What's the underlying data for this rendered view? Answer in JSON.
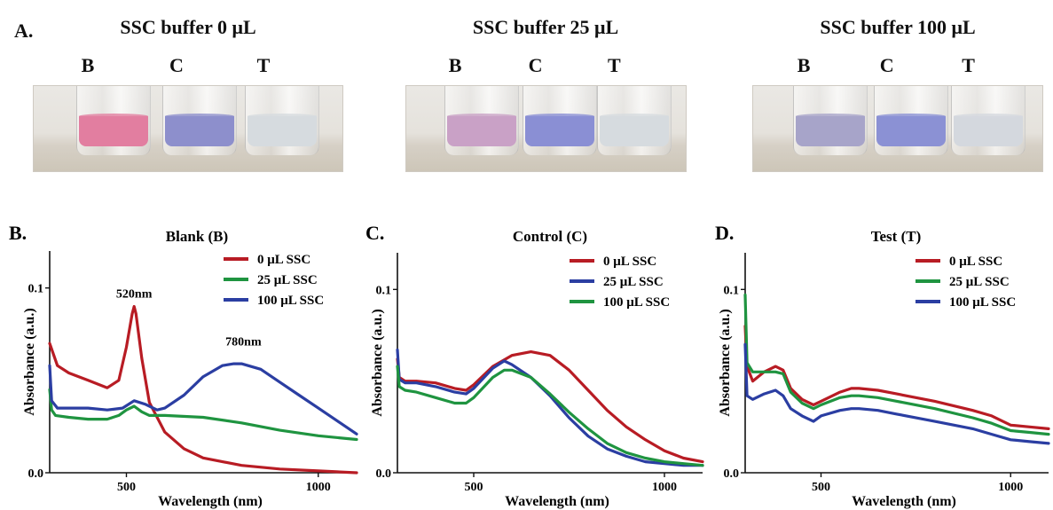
{
  "panel_a": {
    "letter": "A.",
    "tube_labels": [
      "B",
      "C",
      "T"
    ],
    "photos": [
      {
        "title": "SSC buffer 0 μL",
        "colors": [
          "#e27ea0",
          "#8d8fcc",
          "#d6dbdf"
        ]
      },
      {
        "title": "SSC buffer 25 μL",
        "colors": [
          "#c9a1c6",
          "#8a8fd4",
          "#d6dbdf"
        ]
      },
      {
        "title": "SSC buffer 100 μL",
        "colors": [
          "#a7a4c9",
          "#8b91d4",
          "#d4d8de"
        ]
      }
    ]
  },
  "chart_data": [
    {
      "type": "line",
      "letter": "B.",
      "title": "Blank (B)",
      "xlabel": "Wavelength (nm)",
      "ylabel": "Absorbance (a.u.)",
      "xlim": [
        300,
        1100
      ],
      "ylim": [
        0,
        0.12
      ],
      "xticks": [
        500,
        1000
      ],
      "yticks": [
        0.0,
        0.1
      ],
      "legend": "top-right",
      "grid": false,
      "annotations": [
        {
          "text": "520nm",
          "x": 520,
          "y": 0.093
        },
        {
          "text": "780nm",
          "x": 805,
          "y": 0.067
        }
      ],
      "series": [
        {
          "name": "0 μL SSC",
          "color": "#b81c24",
          "x": [
            300,
            320,
            350,
            400,
            450,
            480,
            500,
            515,
            520,
            525,
            540,
            560,
            600,
            650,
            700,
            800,
            900,
            1000,
            1100
          ],
          "y": [
            0.07,
            0.058,
            0.054,
            0.05,
            0.046,
            0.05,
            0.068,
            0.086,
            0.09,
            0.086,
            0.062,
            0.038,
            0.022,
            0.013,
            0.008,
            0.004,
            0.002,
            0.001,
            0.0
          ]
        },
        {
          "name": "25 μL SSC",
          "color": "#1f9440",
          "x": [
            300,
            305,
            315,
            350,
            400,
            450,
            480,
            500,
            520,
            540,
            560,
            600,
            700,
            800,
            900,
            1000,
            1100
          ],
          "y": [
            0.045,
            0.034,
            0.031,
            0.03,
            0.029,
            0.029,
            0.031,
            0.034,
            0.036,
            0.033,
            0.031,
            0.031,
            0.03,
            0.027,
            0.023,
            0.02,
            0.018
          ]
        },
        {
          "name": "100 μL SSC",
          "color": "#2b3ea2",
          "x": [
            300,
            305,
            320,
            400,
            450,
            490,
            520,
            550,
            580,
            600,
            650,
            700,
            750,
            780,
            800,
            850,
            900,
            950,
            1000,
            1050,
            1100
          ],
          "y": [
            0.058,
            0.039,
            0.035,
            0.035,
            0.034,
            0.035,
            0.039,
            0.037,
            0.034,
            0.035,
            0.042,
            0.052,
            0.058,
            0.059,
            0.059,
            0.056,
            0.049,
            0.042,
            0.035,
            0.028,
            0.021
          ]
        }
      ]
    },
    {
      "type": "line",
      "letter": "C.",
      "title": "Control (C)",
      "xlabel": "Wavelength (nm)",
      "ylabel": "Absorbance (a.u.)",
      "xlim": [
        300,
        1100
      ],
      "ylim": [
        0,
        0.12
      ],
      "xticks": [
        500,
        1000
      ],
      "yticks": [
        0.0,
        0.1
      ],
      "legend": "top-right",
      "grid": false,
      "series": [
        {
          "name": "0 μL SSC",
          "color": "#b81c24",
          "x": [
            300,
            305,
            320,
            350,
            400,
            450,
            480,
            500,
            550,
            600,
            650,
            700,
            750,
            800,
            850,
            900,
            950,
            1000,
            1050,
            1100
          ],
          "y": [
            0.062,
            0.052,
            0.05,
            0.05,
            0.049,
            0.046,
            0.045,
            0.048,
            0.058,
            0.064,
            0.066,
            0.064,
            0.056,
            0.045,
            0.034,
            0.025,
            0.018,
            0.012,
            0.008,
            0.006
          ]
        },
        {
          "name": "25 μL SSC",
          "color": "#2b3ea2",
          "x": [
            300,
            305,
            320,
            350,
            400,
            450,
            480,
            500,
            550,
            580,
            600,
            650,
            700,
            750,
            800,
            850,
            900,
            950,
            1000,
            1050,
            1100
          ],
          "y": [
            0.067,
            0.051,
            0.049,
            0.049,
            0.047,
            0.044,
            0.043,
            0.046,
            0.057,
            0.061,
            0.059,
            0.052,
            0.042,
            0.03,
            0.02,
            0.013,
            0.009,
            0.006,
            0.005,
            0.004,
            0.004
          ]
        },
        {
          "name": "100 μL SSC",
          "color": "#1f9440",
          "x": [
            300,
            305,
            320,
            350,
            400,
            450,
            480,
            500,
            550,
            580,
            600,
            650,
            700,
            750,
            800,
            850,
            900,
            950,
            1000,
            1050,
            1100
          ],
          "y": [
            0.058,
            0.047,
            0.045,
            0.044,
            0.041,
            0.038,
            0.038,
            0.041,
            0.052,
            0.056,
            0.056,
            0.052,
            0.043,
            0.033,
            0.024,
            0.016,
            0.011,
            0.008,
            0.006,
            0.005,
            0.004
          ]
        }
      ]
    },
    {
      "type": "line",
      "letter": "D.",
      "title": "Test (T)",
      "xlabel": "Wavelength (nm)",
      "ylabel": "Absorbance (a.u.)",
      "xlim": [
        300,
        1100
      ],
      "ylim": [
        0,
        0.12
      ],
      "xticks": [
        500,
        1000
      ],
      "yticks": [
        0.0,
        0.1
      ],
      "legend": "top-right",
      "grid": false,
      "series": [
        {
          "name": "0 μL SSC",
          "color": "#b81c24",
          "x": [
            300,
            305,
            320,
            350,
            380,
            400,
            420,
            450,
            480,
            500,
            550,
            580,
            600,
            650,
            700,
            800,
            900,
            950,
            1000,
            1050,
            1100
          ],
          "y": [
            0.08,
            0.058,
            0.05,
            0.055,
            0.058,
            0.056,
            0.046,
            0.04,
            0.037,
            0.039,
            0.044,
            0.046,
            0.046,
            0.045,
            0.043,
            0.039,
            0.034,
            0.031,
            0.026,
            0.025,
            0.024
          ]
        },
        {
          "name": "25 μL SSC",
          "color": "#1f9440",
          "x": [
            300,
            305,
            320,
            350,
            380,
            400,
            420,
            450,
            480,
            500,
            550,
            580,
            600,
            650,
            700,
            800,
            900,
            950,
            1000,
            1050,
            1100
          ],
          "y": [
            0.097,
            0.06,
            0.055,
            0.055,
            0.055,
            0.054,
            0.044,
            0.038,
            0.035,
            0.037,
            0.041,
            0.042,
            0.042,
            0.041,
            0.039,
            0.035,
            0.03,
            0.027,
            0.023,
            0.022,
            0.021
          ]
        },
        {
          "name": "100 μL SSC",
          "color": "#2b3ea2",
          "x": [
            300,
            305,
            320,
            350,
            380,
            400,
            420,
            450,
            480,
            500,
            550,
            580,
            600,
            650,
            700,
            800,
            900,
            950,
            1000,
            1050,
            1100
          ],
          "y": [
            0.07,
            0.042,
            0.04,
            0.043,
            0.045,
            0.042,
            0.035,
            0.031,
            0.028,
            0.031,
            0.034,
            0.035,
            0.035,
            0.034,
            0.032,
            0.028,
            0.024,
            0.021,
            0.018,
            0.017,
            0.016
          ]
        }
      ]
    }
  ]
}
